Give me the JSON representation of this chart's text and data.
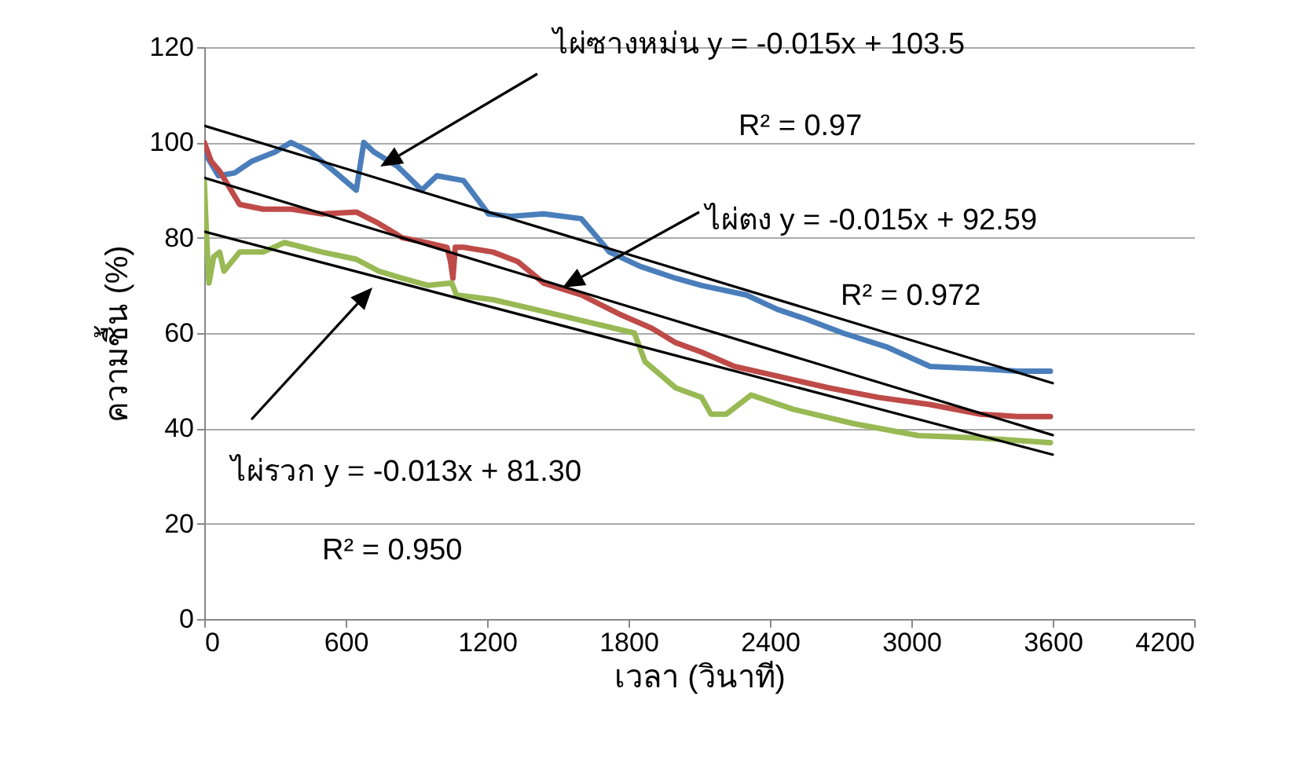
{
  "chart_data": {
    "type": "line",
    "xlabel": "เวลา (วินาที)",
    "ylabel": "ความชื้น (%)",
    "xlim": [
      0,
      4200
    ],
    "xticks": [
      0,
      600,
      1200,
      1800,
      2400,
      3000,
      3600,
      4200
    ],
    "ylim": [
      0,
      120
    ],
    "yticks": [
      0,
      20,
      40,
      60,
      80,
      100,
      120
    ],
    "grid": "y",
    "marker": "none",
    "line_style": "solid",
    "series": [
      {
        "color": "#4a7ebb",
        "x": [
          0,
          60,
          129,
          200,
          300,
          368,
          450,
          550,
          645,
          677,
          720,
          820,
          923,
          987,
          1100,
          1206,
          1300,
          1440,
          1600,
          1720,
          1850,
          2000,
          2110,
          2300,
          2430,
          2550,
          2710,
          2900,
          3080,
          3300,
          3450,
          3590
        ],
        "values": [
          98,
          93,
          93.6,
          96,
          98,
          100,
          98,
          94,
          90,
          100,
          98,
          95,
          90,
          93,
          92,
          85,
          84.5,
          85,
          84,
          77,
          74,
          71.5,
          70,
          68,
          65,
          63,
          60,
          57,
          53,
          52.5,
          52,
          52
        ]
      },
      {
        "color": "#be4b48",
        "x": [
          0,
          30,
          65,
          150,
          250,
          370,
          500,
          645,
          740,
          840,
          940,
          1030,
          1045,
          1055,
          1065,
          1100,
          1225,
          1330,
          1440,
          1600,
          1760,
          1900,
          2000,
          2110,
          2250,
          2430,
          2650,
          2860,
          3080,
          3290,
          3450,
          3590
        ],
        "values": [
          100,
          96,
          94,
          87,
          86,
          86,
          85,
          85.4,
          83,
          80,
          79,
          78,
          75,
          71.5,
          78,
          78,
          77,
          75,
          70.5,
          68,
          64,
          61,
          58,
          56,
          53,
          51,
          48.5,
          46.5,
          45,
          43,
          42.5,
          42.5
        ]
      },
      {
        "color": "#98b954",
        "x": [
          0,
          10,
          20,
          40,
          65,
          84,
          150,
          250,
          340,
          500,
          645,
          740,
          840,
          950,
          1050,
          1070,
          1225,
          1400,
          1655,
          1825,
          1870,
          2000,
          2110,
          2150,
          2215,
          2320,
          2500,
          2755,
          3030,
          3290,
          3590
        ],
        "values": [
          92,
          80,
          70.5,
          76,
          77,
          73,
          77,
          77,
          79,
          77,
          75.5,
          73,
          71.5,
          70,
          70.5,
          68,
          67,
          65,
          62,
          60,
          54,
          48.5,
          46.5,
          43,
          43,
          47,
          44,
          41,
          38.5,
          38,
          37
        ]
      },
      {
        "color": "#000000",
        "x": [
          0,
          3600
        ],
        "values": [
          103.5,
          49.5
        ]
      },
      {
        "color": "#000000",
        "x": [
          0,
          3600
        ],
        "values": [
          92.59,
          38.59
        ]
      },
      {
        "color": "#000000",
        "x": [
          0,
          3600
        ],
        "values": [
          81.3,
          34.5
        ]
      }
    ],
    "annotations": [
      "ไผ่ซางหม่น y = -0.015x + 103.5",
      "R² = 0.97",
      "ไผ่ตง y = -0.015x + 92.59",
      "R² = 0.972",
      "ไผ่รวก y = -0.013x + 81.30",
      "R² = 0.950"
    ]
  }
}
